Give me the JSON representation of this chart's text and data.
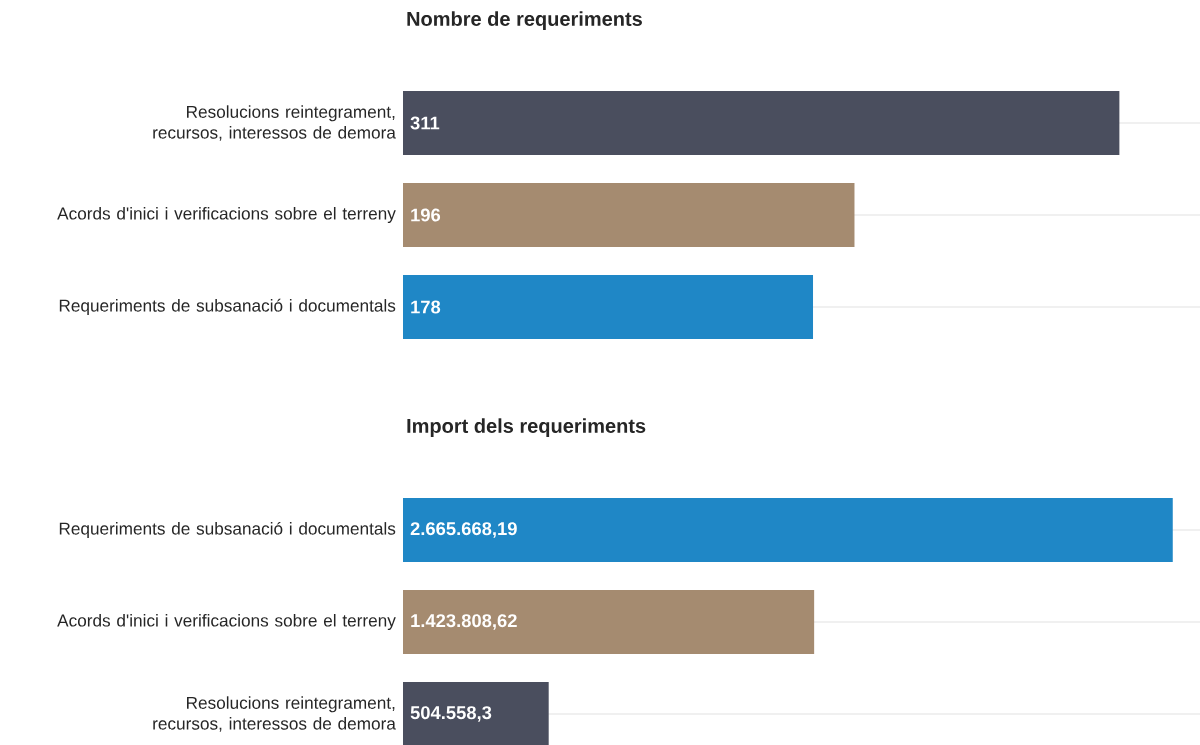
{
  "chart_data": [
    {
      "type": "bar",
      "orientation": "horizontal",
      "title": "Nombre de requeriments",
      "categories": [
        "Resolucions reintegrament, recursos, interessos de demora",
        "Acords d'inici i verificacions sobre el terreny",
        "Requeriments de subsanació i documentals"
      ],
      "values": [
        311,
        196,
        178
      ],
      "colors": [
        "#4a4e5e",
        "#a58b70",
        "#1f87c6"
      ],
      "value_labels": [
        "311",
        "196",
        "178"
      ],
      "xlim": [
        0,
        346
      ],
      "grid": "y",
      "tick_labels": "y"
    },
    {
      "type": "bar",
      "orientation": "horizontal",
      "title": "Import dels requeriments",
      "categories": [
        "Requeriments de subsanació i documentals",
        "Acords d'inici i verificacions sobre el terreny",
        "Resolucions reintegrament, recursos, interessos de demora"
      ],
      "values": [
        2665668.19,
        1423808.62,
        504558.3
      ],
      "colors": [
        "#1f87c6",
        "#a58b70",
        "#4a4e5e"
      ],
      "value_labels": [
        "2.665.668,19",
        "1.423.808,62",
        "504.558,3"
      ],
      "xlim": [
        0,
        2760000
      ],
      "grid": "y",
      "tick_labels": "y"
    }
  ]
}
